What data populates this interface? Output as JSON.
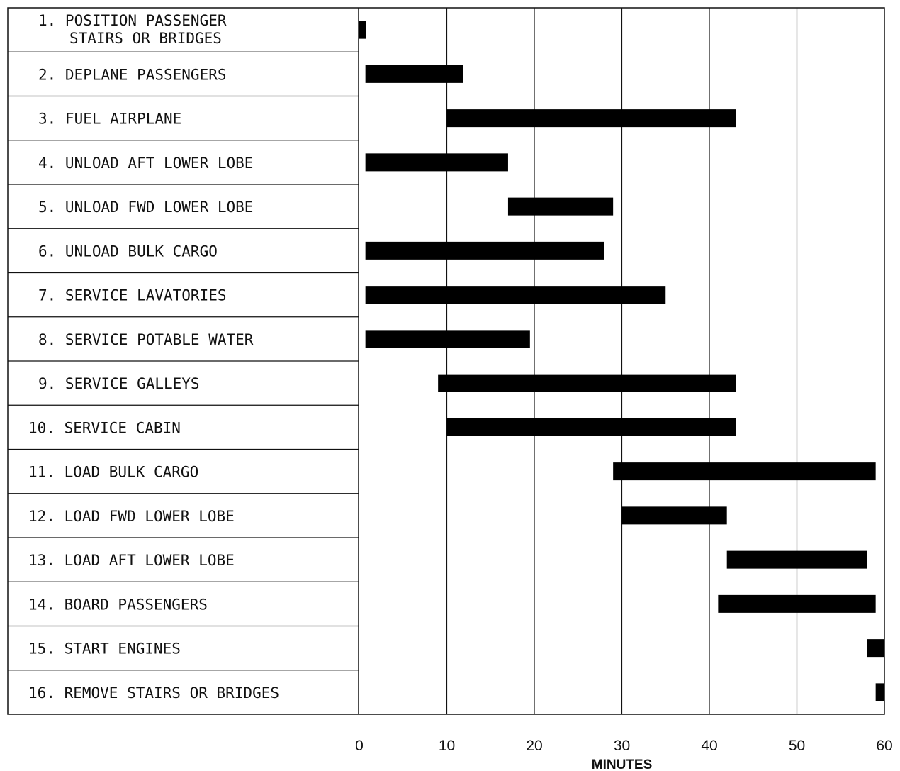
{
  "chart_data": {
    "type": "bar",
    "xlabel": "MINUTES",
    "xlim": [
      0,
      60
    ],
    "xticks": [
      "0",
      "10",
      "20",
      "30",
      "40",
      "50",
      "60"
    ],
    "grid": "vertical",
    "bar_color": "#000000",
    "tasks": [
      {
        "label": [
          "1. POSITION PASSENGER",
          "STAIRS OR BRIDGES"
        ],
        "start": 0,
        "end": 0.8
      },
      {
        "label": [
          "2. DEPLANE PASSENGERS"
        ],
        "start": 0.7,
        "end": 11.9
      },
      {
        "label": [
          "3. FUEL AIRPLANE"
        ],
        "start": 10,
        "end": 43
      },
      {
        "label": [
          "4. UNLOAD AFT LOWER LOBE"
        ],
        "start": 0.7,
        "end": 17
      },
      {
        "label": [
          "5. UNLOAD FWD LOWER LOBE"
        ],
        "start": 17,
        "end": 29
      },
      {
        "label": [
          "6. UNLOAD BULK CARGO"
        ],
        "start": 0.7,
        "end": 28
      },
      {
        "label": [
          "7. SERVICE LAVATORIES"
        ],
        "start": 0.7,
        "end": 35
      },
      {
        "label": [
          "8. SERVICE POTABLE WATER"
        ],
        "start": 0.7,
        "end": 19.5
      },
      {
        "label": [
          "9. SERVICE GALLEYS"
        ],
        "start": 9,
        "end": 43
      },
      {
        "label": [
          "10. SERVICE CABIN"
        ],
        "start": 10,
        "end": 43
      },
      {
        "label": [
          "11. LOAD BULK CARGO"
        ],
        "start": 29,
        "end": 59
      },
      {
        "label": [
          "12. LOAD FWD LOWER LOBE"
        ],
        "start": 30,
        "end": 42
      },
      {
        "label": [
          "13. LOAD AFT LOWER LOBE"
        ],
        "start": 42,
        "end": 58
      },
      {
        "label": [
          "14. BOARD PASSENGERS"
        ],
        "start": 41,
        "end": 59
      },
      {
        "label": [
          "15. START ENGINES"
        ],
        "start": 58,
        "end": 60
      },
      {
        "label": [
          "16. REMOVE STAIRS OR BRIDGES"
        ],
        "start": 59,
        "end": 60
      }
    ]
  }
}
